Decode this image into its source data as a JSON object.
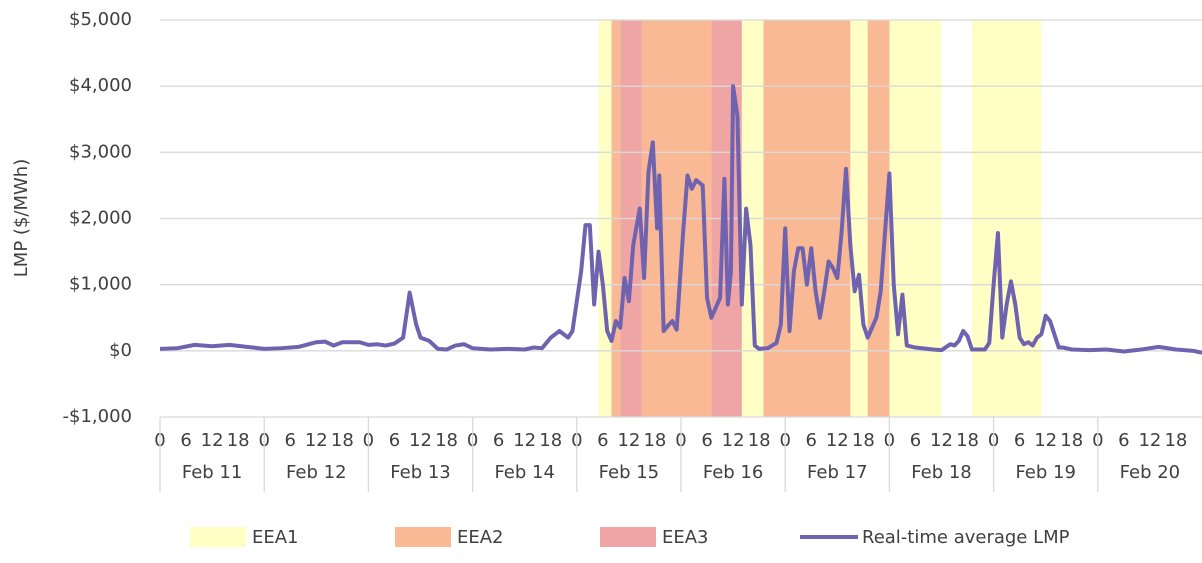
{
  "chart_data": {
    "type": "line",
    "ylabel": "LMP ($/MWh)",
    "xlim": [
      0,
      240
    ],
    "ylim": [
      -1000,
      5000
    ],
    "yticks": [
      {
        "value": -1000,
        "label": "-$1,000"
      },
      {
        "value": 0,
        "label": "$0"
      },
      {
        "value": 1000,
        "label": "$1,000"
      },
      {
        "value": 2000,
        "label": "$2,000"
      },
      {
        "value": 3000,
        "label": "$3,000"
      },
      {
        "value": 4000,
        "label": "$4,000"
      },
      {
        "value": 5000,
        "label": "$5,000"
      }
    ],
    "grid": true,
    "xticks": [
      0,
      6,
      {
        "value": 12,
        "label": "12"
      },
      18,
      {
        "value": 24,
        "label": "0"
      },
      {
        "value": 30,
        "label": "6"
      },
      {
        "value": 36,
        "label": "12"
      },
      {
        "value": 42,
        "label": "18"
      },
      {
        "value": 48,
        "label": "0"
      },
      {
        "value": 54,
        "label": "6"
      },
      {
        "value": 60,
        "label": "12"
      },
      {
        "value": 66,
        "label": "18"
      },
      {
        "value": 72,
        "label": "0"
      },
      {
        "value": 78,
        "label": "6"
      },
      {
        "value": 84,
        "label": "12"
      },
      {
        "value": 90,
        "label": "18"
      },
      {
        "value": 96,
        "label": "0"
      },
      {
        "value": 102,
        "label": "6"
      },
      {
        "value": 108,
        "label": "12"
      },
      {
        "value": 114,
        "label": "18"
      },
      {
        "value": 120,
        "label": "0"
      },
      {
        "value": 126,
        "label": "6"
      },
      {
        "value": 132,
        "label": "12"
      },
      {
        "value": 138,
        "label": "18"
      },
      {
        "value": 144,
        "label": "0"
      },
      {
        "value": 150,
        "label": "6"
      },
      {
        "value": 156,
        "label": "12"
      },
      {
        "value": 162,
        "label": "18"
      },
      {
        "value": 168,
        "label": "0"
      },
      {
        "value": 174,
        "label": "6"
      },
      {
        "value": 180,
        "label": "12"
      },
      {
        "value": 186,
        "label": "18"
      },
      {
        "value": 192,
        "label": "0"
      },
      {
        "value": 198,
        "label": "6"
      },
      {
        "value": 204,
        "label": "12"
      },
      {
        "value": 210,
        "label": "18"
      },
      {
        "value": 216,
        "label": "0"
      },
      {
        "value": 222,
        "label": "6"
      },
      {
        "value": 228,
        "label": "12"
      },
      {
        "value": 234,
        "label": "18"
      }
    ],
    "categories": [
      "Feb 11",
      "Feb 12",
      "Feb 13",
      "Feb 14",
      "Feb 15",
      "Feb 16",
      "Feb 17",
      "Feb 18",
      "Feb 19",
      "Feb 20"
    ],
    "bands": [
      {
        "name": "EEA1",
        "color": "#ffffc5",
        "intervals": [
          [
            101,
            104
          ],
          [
            134,
            139
          ],
          [
            159,
            163
          ],
          [
            168,
            180
          ],
          [
            187,
            203
          ]
        ]
      },
      {
        "name": "EEA2",
        "color": "#f8b994",
        "intervals": [
          [
            104,
            106
          ],
          [
            111,
            127
          ],
          [
            139,
            159
          ],
          [
            163,
            168
          ]
        ]
      },
      {
        "name": "EEA3",
        "color": "#f0a5a5",
        "intervals": [
          [
            106,
            111
          ],
          [
            127,
            134
          ]
        ]
      }
    ],
    "series": [
      {
        "name": "Real-time average LMP",
        "color": "#6f63b0",
        "x": [
          0,
          4,
          8,
          12,
          16,
          20,
          24,
          28,
          32,
          36,
          38,
          40,
          42,
          46,
          48,
          50,
          52,
          54,
          56,
          57.5,
          59,
          60,
          62,
          64,
          66,
          68,
          70,
          72,
          76,
          80,
          84,
          86,
          88,
          90,
          92,
          94,
          95,
          97,
          98,
          99,
          100,
          101,
          102,
          103,
          104,
          105,
          106,
          107,
          108,
          109,
          110.5,
          111.5,
          112.5,
          113.5,
          114.5,
          115,
          116,
          117,
          118,
          119,
          120.5,
          121.5,
          122.5,
          123.5,
          125,
          126,
          127,
          128,
          129,
          130,
          130.8,
          131.5,
          132,
          133,
          134,
          135,
          136,
          137,
          138,
          140,
          142,
          143,
          144,
          145,
          146,
          147,
          148,
          149,
          150,
          151,
          152,
          153,
          154,
          155,
          156,
          157,
          158,
          159,
          160,
          161,
          162,
          163,
          164,
          165,
          166,
          167,
          168,
          169,
          170,
          171,
          172,
          174,
          178,
          180,
          182,
          183,
          184,
          185,
          186,
          187,
          190,
          191,
          192,
          193,
          194,
          195,
          196,
          197,
          198,
          199,
          200,
          201,
          202,
          203,
          204,
          205,
          206,
          207,
          208,
          210,
          214,
          218,
          222,
          226,
          230,
          234,
          238,
          240
        ],
        "values": [
          30,
          40,
          90,
          70,
          90,
          60,
          30,
          40,
          60,
          130,
          140,
          80,
          130,
          130,
          90,
          100,
          80,
          110,
          200,
          880,
          400,
          200,
          150,
          30,
          20,
          80,
          100,
          40,
          20,
          30,
          20,
          50,
          40,
          200,
          300,
          200,
          300,
          1200,
          1900,
          1900,
          700,
          1500,
          1000,
          300,
          150,
          450,
          350,
          1100,
          750,
          1600,
          2150,
          1100,
          2700,
          3150,
          1850,
          2650,
          300,
          380,
          450,
          320,
          1800,
          2650,
          2450,
          2580,
          2500,
          800,
          500,
          650,
          800,
          2600,
          700,
          1200,
          4000,
          3550,
          700,
          2150,
          1600,
          80,
          30,
          40,
          120,
          400,
          1850,
          300,
          1200,
          1550,
          1550,
          1000,
          1550,
          900,
          500,
          900,
          1350,
          1250,
          1100,
          1800,
          2750,
          1600,
          900,
          1150,
          400,
          200,
          350,
          500,
          900,
          1800,
          2680,
          1000,
          250,
          850,
          80,
          50,
          20,
          10,
          100,
          80,
          150,
          300,
          220,
          20,
          20,
          120,
          1000,
          1780,
          200,
          700,
          1050,
          700,
          200,
          100,
          130,
          80,
          200,
          250,
          530,
          450,
          250,
          50,
          50,
          20,
          10,
          20,
          -10,
          20,
          60,
          20,
          0,
          -30
        ]
      }
    ]
  }
}
